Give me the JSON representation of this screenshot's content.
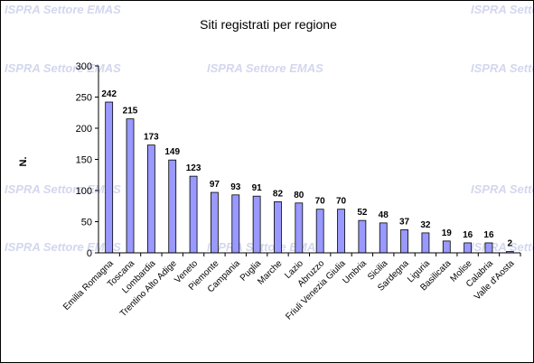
{
  "watermark": "ISPRA Settore EMAS",
  "colors": {
    "bar_fill": "#9999ff",
    "bar_stroke": "#000000",
    "watermark": "#d3d7ee",
    "frame": "#000000"
  },
  "chart_data": {
    "type": "bar",
    "title": "Siti registrati per regione",
    "xlabel": "",
    "ylabel": "N.",
    "ylim": [
      0,
      300
    ],
    "yticks": [
      0,
      50,
      100,
      150,
      200,
      250,
      300
    ],
    "grid": false,
    "legend": "none",
    "categories": [
      "Emilia Romagna",
      "Toscana",
      "Lombardia",
      "Trentino Alto Adige",
      "Veneto",
      "Piemonte",
      "Campania",
      "Puglia",
      "Marche",
      "Lazio",
      "Abruzzo",
      "Friuli Venezia Giulia",
      "Umbria",
      "Sicilia",
      "Sardegna",
      "Liguria",
      "Basilicata",
      "Molise",
      "Calabria",
      "Valle d'Aosta"
    ],
    "values": [
      242,
      215,
      173,
      149,
      123,
      97,
      93,
      91,
      82,
      80,
      70,
      70,
      52,
      48,
      37,
      32,
      19,
      16,
      16,
      2
    ]
  }
}
